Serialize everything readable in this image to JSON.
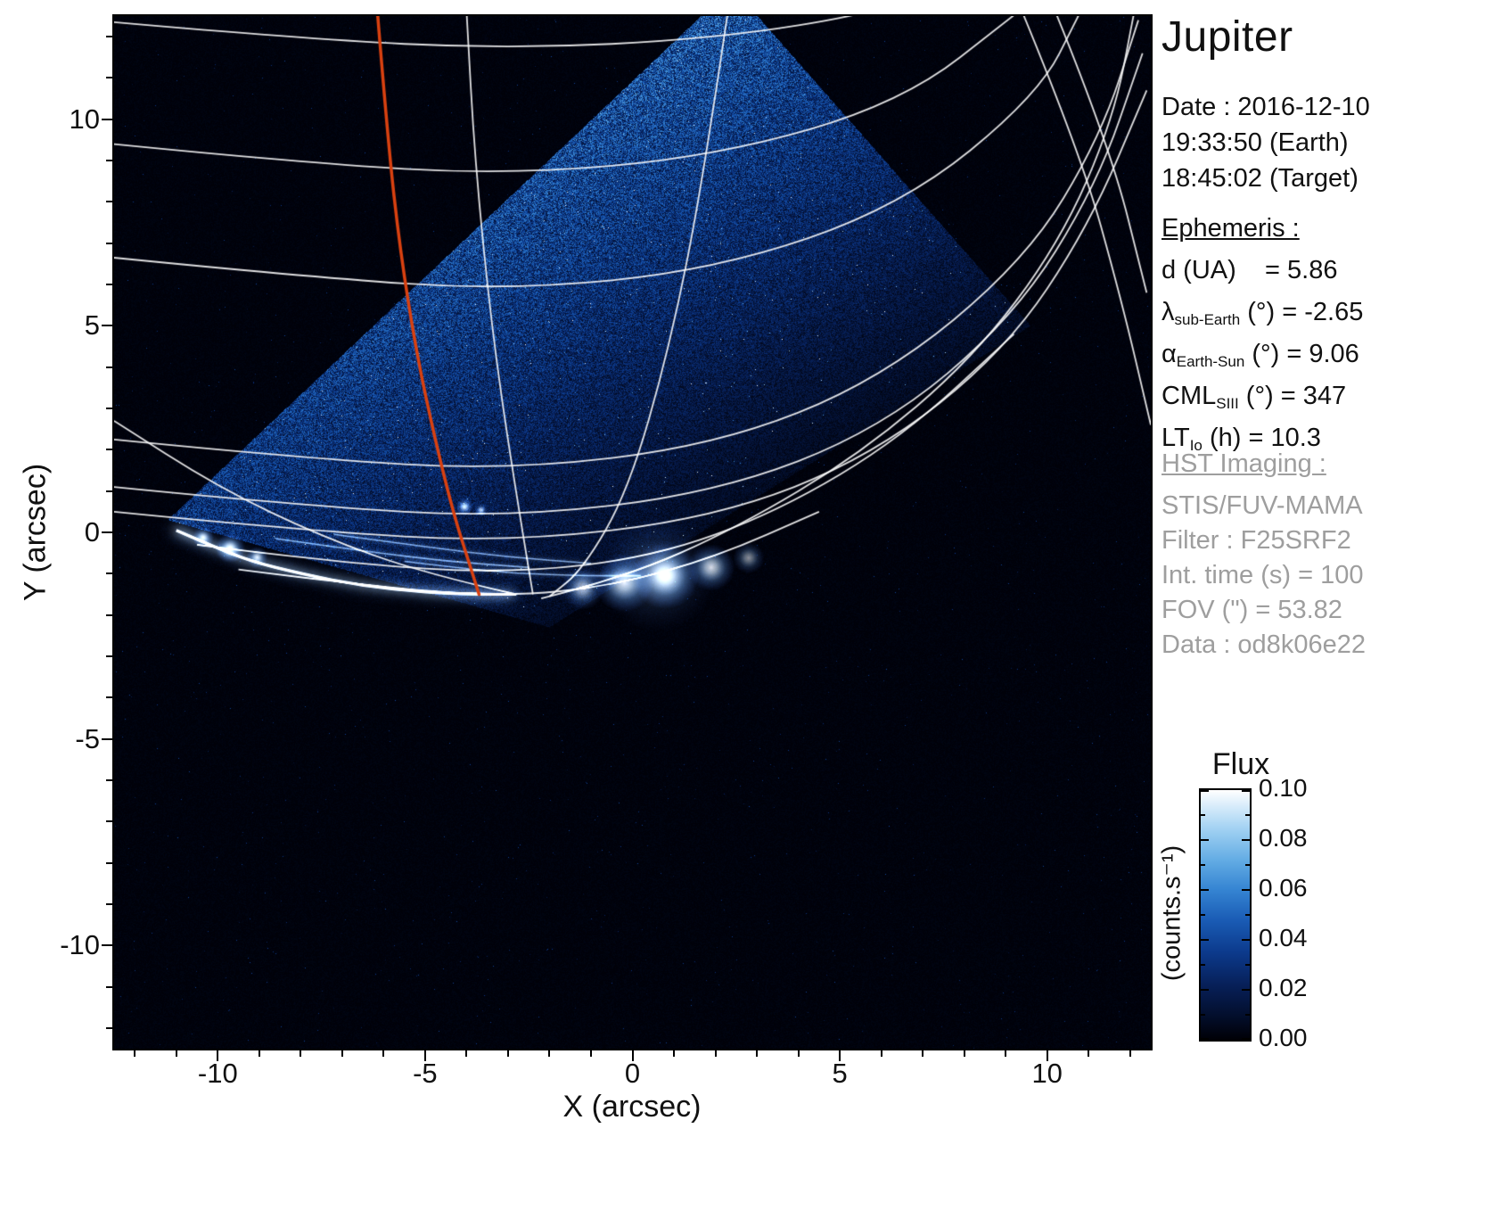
{
  "title": "Jupiter",
  "observation": {
    "date_line": "Date : 2016-12-10",
    "earth_time": "19:33:50 (Earth)",
    "target_time": "18:45:02 (Target)"
  },
  "ephemeris": {
    "header": "Ephemeris :",
    "rows": [
      {
        "pre": "d (UA)",
        "sub": "",
        "post": "    = 5.86"
      },
      {
        "pre": "λ",
        "sub": "sub-Earth",
        "post": " (°) = -2.65"
      },
      {
        "pre": "α",
        "sub": "Earth-Sun",
        "post": " (°) = 9.06"
      },
      {
        "pre": "CML",
        "sub": "SIII",
        "post": " (°) = 347"
      },
      {
        "pre": "LT",
        "sub": "Io",
        "post": " (h) = 10.3"
      }
    ]
  },
  "hst": {
    "header": "HST Imaging :",
    "lines": [
      "STIS/FUV-MAMA",
      "Filter : F25SRF2",
      "Int. time (s) = 100",
      "FOV (\") = 53.82",
      "Data : od8k06e22"
    ]
  },
  "chart_data": {
    "type": "heatmap",
    "xlabel": "X (arcsec)",
    "ylabel": "Y (arcsec)",
    "xlim": [
      -12.5,
      12.5
    ],
    "ylim": [
      -12.5,
      12.5
    ],
    "xticks": [
      -10,
      -5,
      0,
      5,
      10
    ],
    "yticks": [
      -10,
      -5,
      0,
      5,
      10
    ],
    "xtick_labels": [
      "-10",
      "-5",
      "0",
      "5",
      "10"
    ],
    "ytick_labels": [
      "10",
      "5",
      "0",
      "-5",
      "-10"
    ],
    "background": "#000000",
    "colormap_stops": [
      [
        0.0,
        "#000006"
      ],
      [
        0.1,
        "#030f2e"
      ],
      [
        0.22,
        "#072059"
      ],
      [
        0.35,
        "#0c3a8c"
      ],
      [
        0.48,
        "#1a5cb5"
      ],
      [
        0.6,
        "#3584d2"
      ],
      [
        0.72,
        "#63ace4"
      ],
      [
        0.84,
        "#9fd0f2"
      ],
      [
        0.93,
        "#d4eafa"
      ],
      [
        1.0,
        "#ffffff"
      ]
    ],
    "fov_polygon": [
      [
        2.4,
        13.2
      ],
      [
        9.6,
        5.0
      ],
      [
        -2.0,
        -2.3
      ],
      [
        -11.2,
        0.3
      ]
    ],
    "graticule": {
      "color": "rgba(255,255,255,0.88)",
      "width": 1.8,
      "lines": [
        [
          [
            -12.5,
            12.35
          ],
          [
            -8,
            11.95
          ],
          [
            -3,
            11.7
          ],
          [
            2,
            11.95
          ],
          [
            6,
            12.6
          ],
          [
            8,
            13.4
          ]
        ],
        [
          [
            -12.5,
            9.4
          ],
          [
            -8,
            8.95
          ],
          [
            -3,
            8.65
          ],
          [
            2,
            9.1
          ],
          [
            6.5,
            10.4
          ],
          [
            9.3,
            12.6
          ]
        ],
        [
          [
            -12.5,
            6.65
          ],
          [
            -8,
            6.2
          ],
          [
            -3,
            5.85
          ],
          [
            2,
            6.35
          ],
          [
            6.5,
            7.9
          ],
          [
            9.8,
            10.6
          ],
          [
            10.8,
            12.6
          ]
        ],
        [
          [
            -12.5,
            2.25
          ],
          [
            -8,
            1.8
          ],
          [
            -3,
            1.5
          ],
          [
            2,
            2.1
          ],
          [
            6,
            3.7
          ],
          [
            9.5,
            6.6
          ],
          [
            11.3,
            9.6
          ],
          [
            12.2,
            12.4
          ]
        ],
        [
          [
            -12.5,
            1.1
          ],
          [
            -8,
            0.65
          ],
          [
            -3,
            0.35
          ],
          [
            2,
            0.95
          ],
          [
            6,
            2.5
          ],
          [
            9.2,
            5.2
          ],
          [
            11.2,
            8.4
          ],
          [
            12.3,
            11.6
          ]
        ],
        [
          [
            -12.5,
            0.5
          ],
          [
            -8,
            0.05
          ],
          [
            -3,
            -0.25
          ],
          [
            2,
            0.35
          ],
          [
            5.8,
            1.85
          ],
          [
            9,
            4.4
          ],
          [
            11,
            7.4
          ],
          [
            12.4,
            10.7
          ]
        ],
        [
          [
            -10.5,
            -0.3
          ],
          [
            -7,
            -0.75
          ],
          [
            -3,
            -1.0
          ],
          [
            0.5,
            -0.6
          ],
          [
            3.5,
            0.5
          ],
          [
            6.5,
            2.3
          ],
          [
            9.2,
            4.8
          ]
        ],
        [
          [
            -9.5,
            -0.9
          ],
          [
            -6,
            -1.35
          ],
          [
            -3,
            -1.55
          ],
          [
            -0.5,
            -1.3
          ],
          [
            2,
            -0.6
          ],
          [
            4.5,
            0.5
          ]
        ],
        [
          [
            2.3,
            12.6
          ],
          [
            1.7,
            8.5
          ],
          [
            0.9,
            4.5
          ],
          [
            -0.1,
            1.0
          ],
          [
            -1.2,
            -0.9
          ],
          [
            -2.0,
            -1.55
          ]
        ],
        [
          [
            -2.2,
            -1.6
          ],
          [
            -0.2,
            -1.1
          ],
          [
            2.5,
            0.1
          ],
          [
            5.5,
            1.9
          ],
          [
            8.2,
            4.2
          ],
          [
            10.3,
            7.0
          ],
          [
            11.6,
            10.0
          ],
          [
            12.1,
            12.6
          ]
        ],
        [
          [
            -2.8,
            -1.5
          ],
          [
            -5,
            -1.0
          ],
          [
            -7.5,
            -0.1
          ],
          [
            -10,
            1.1
          ],
          [
            -12.5,
            2.7
          ]
        ],
        [
          [
            -2.4,
            -1.5
          ],
          [
            -2.9,
            1.5
          ],
          [
            -3.4,
            5.0
          ],
          [
            -3.8,
            9.0
          ],
          [
            -4.0,
            12.6
          ]
        ],
        [
          [
            9.4,
            12.6
          ],
          [
            10.8,
            9.2
          ],
          [
            11.8,
            5.6
          ],
          [
            12.5,
            2.6
          ]
        ],
        [
          [
            10.2,
            12.6
          ],
          [
            11.5,
            9.4
          ],
          [
            12.4,
            5.8
          ]
        ]
      ]
    },
    "io_footprint_path": {
      "color": "#d94110",
      "width": 3.5,
      "points": [
        [
          -6.15,
          12.6
        ],
        [
          -5.9,
          9.5
        ],
        [
          -5.6,
          6.8
        ],
        [
          -5.2,
          4.3
        ],
        [
          -4.75,
          2.2
        ],
        [
          -4.3,
          0.4
        ],
        [
          -3.95,
          -0.7
        ],
        [
          -3.7,
          -1.5
        ]
      ]
    },
    "aurora": {
      "arc": [
        [
          -11.0,
          0.05
        ],
        [
          -10.2,
          -0.3
        ],
        [
          -9.2,
          -0.7
        ],
        [
          -8,
          -1.0
        ],
        [
          -6.5,
          -1.3
        ],
        [
          -5,
          -1.45
        ],
        [
          -3.8,
          -1.5
        ],
        [
          -2.8,
          -1.5
        ]
      ],
      "streaks": [
        [
          [
            -8.6,
            -0.15
          ],
          [
            -6.5,
            -0.45
          ],
          [
            -4.5,
            -0.7
          ],
          [
            -2.5,
            -0.85
          ]
        ],
        [
          [
            -7.2,
            -0.05
          ],
          [
            -5,
            -0.35
          ],
          [
            -3,
            -0.6
          ],
          [
            -1,
            -0.75
          ]
        ],
        [
          [
            -5.5,
            -0.7
          ],
          [
            -3.5,
            -0.95
          ],
          [
            -1.5,
            -1.05
          ],
          [
            0.2,
            -1.05
          ]
        ]
      ],
      "spots": [
        {
          "x": -10.35,
          "y": -0.12,
          "r": 5,
          "i": 0.85
        },
        {
          "x": -9.7,
          "y": -0.38,
          "r": 7,
          "i": 1.0
        },
        {
          "x": -9.05,
          "y": -0.6,
          "r": 5,
          "i": 0.8
        },
        {
          "x": -4.05,
          "y": 0.62,
          "r": 4,
          "i": 0.95
        },
        {
          "x": -3.65,
          "y": 0.54,
          "r": 3,
          "i": 0.8
        }
      ],
      "blobs": [
        {
          "x": -1.2,
          "y": -1.35,
          "r": 11,
          "i": 0.75
        },
        {
          "x": -0.2,
          "y": -1.22,
          "r": 15,
          "i": 0.9
        },
        {
          "x": 0.8,
          "y": -1.05,
          "r": 17,
          "i": 1.0
        },
        {
          "x": 1.9,
          "y": -0.85,
          "r": 12,
          "i": 0.85
        },
        {
          "x": 2.8,
          "y": -0.62,
          "r": 8,
          "i": 0.55
        }
      ],
      "halo": {
        "x": 0.6,
        "y": -1.0,
        "r": 65,
        "i": 0.3
      }
    },
    "colorbar": {
      "title": "Flux",
      "unit": "(counts.s⁻¹)",
      "tick_labels": [
        "0.10",
        "0.08",
        "0.06",
        "0.04",
        "0.02",
        "0.00"
      ],
      "vmin": 0.0,
      "vmax": 0.1
    }
  }
}
